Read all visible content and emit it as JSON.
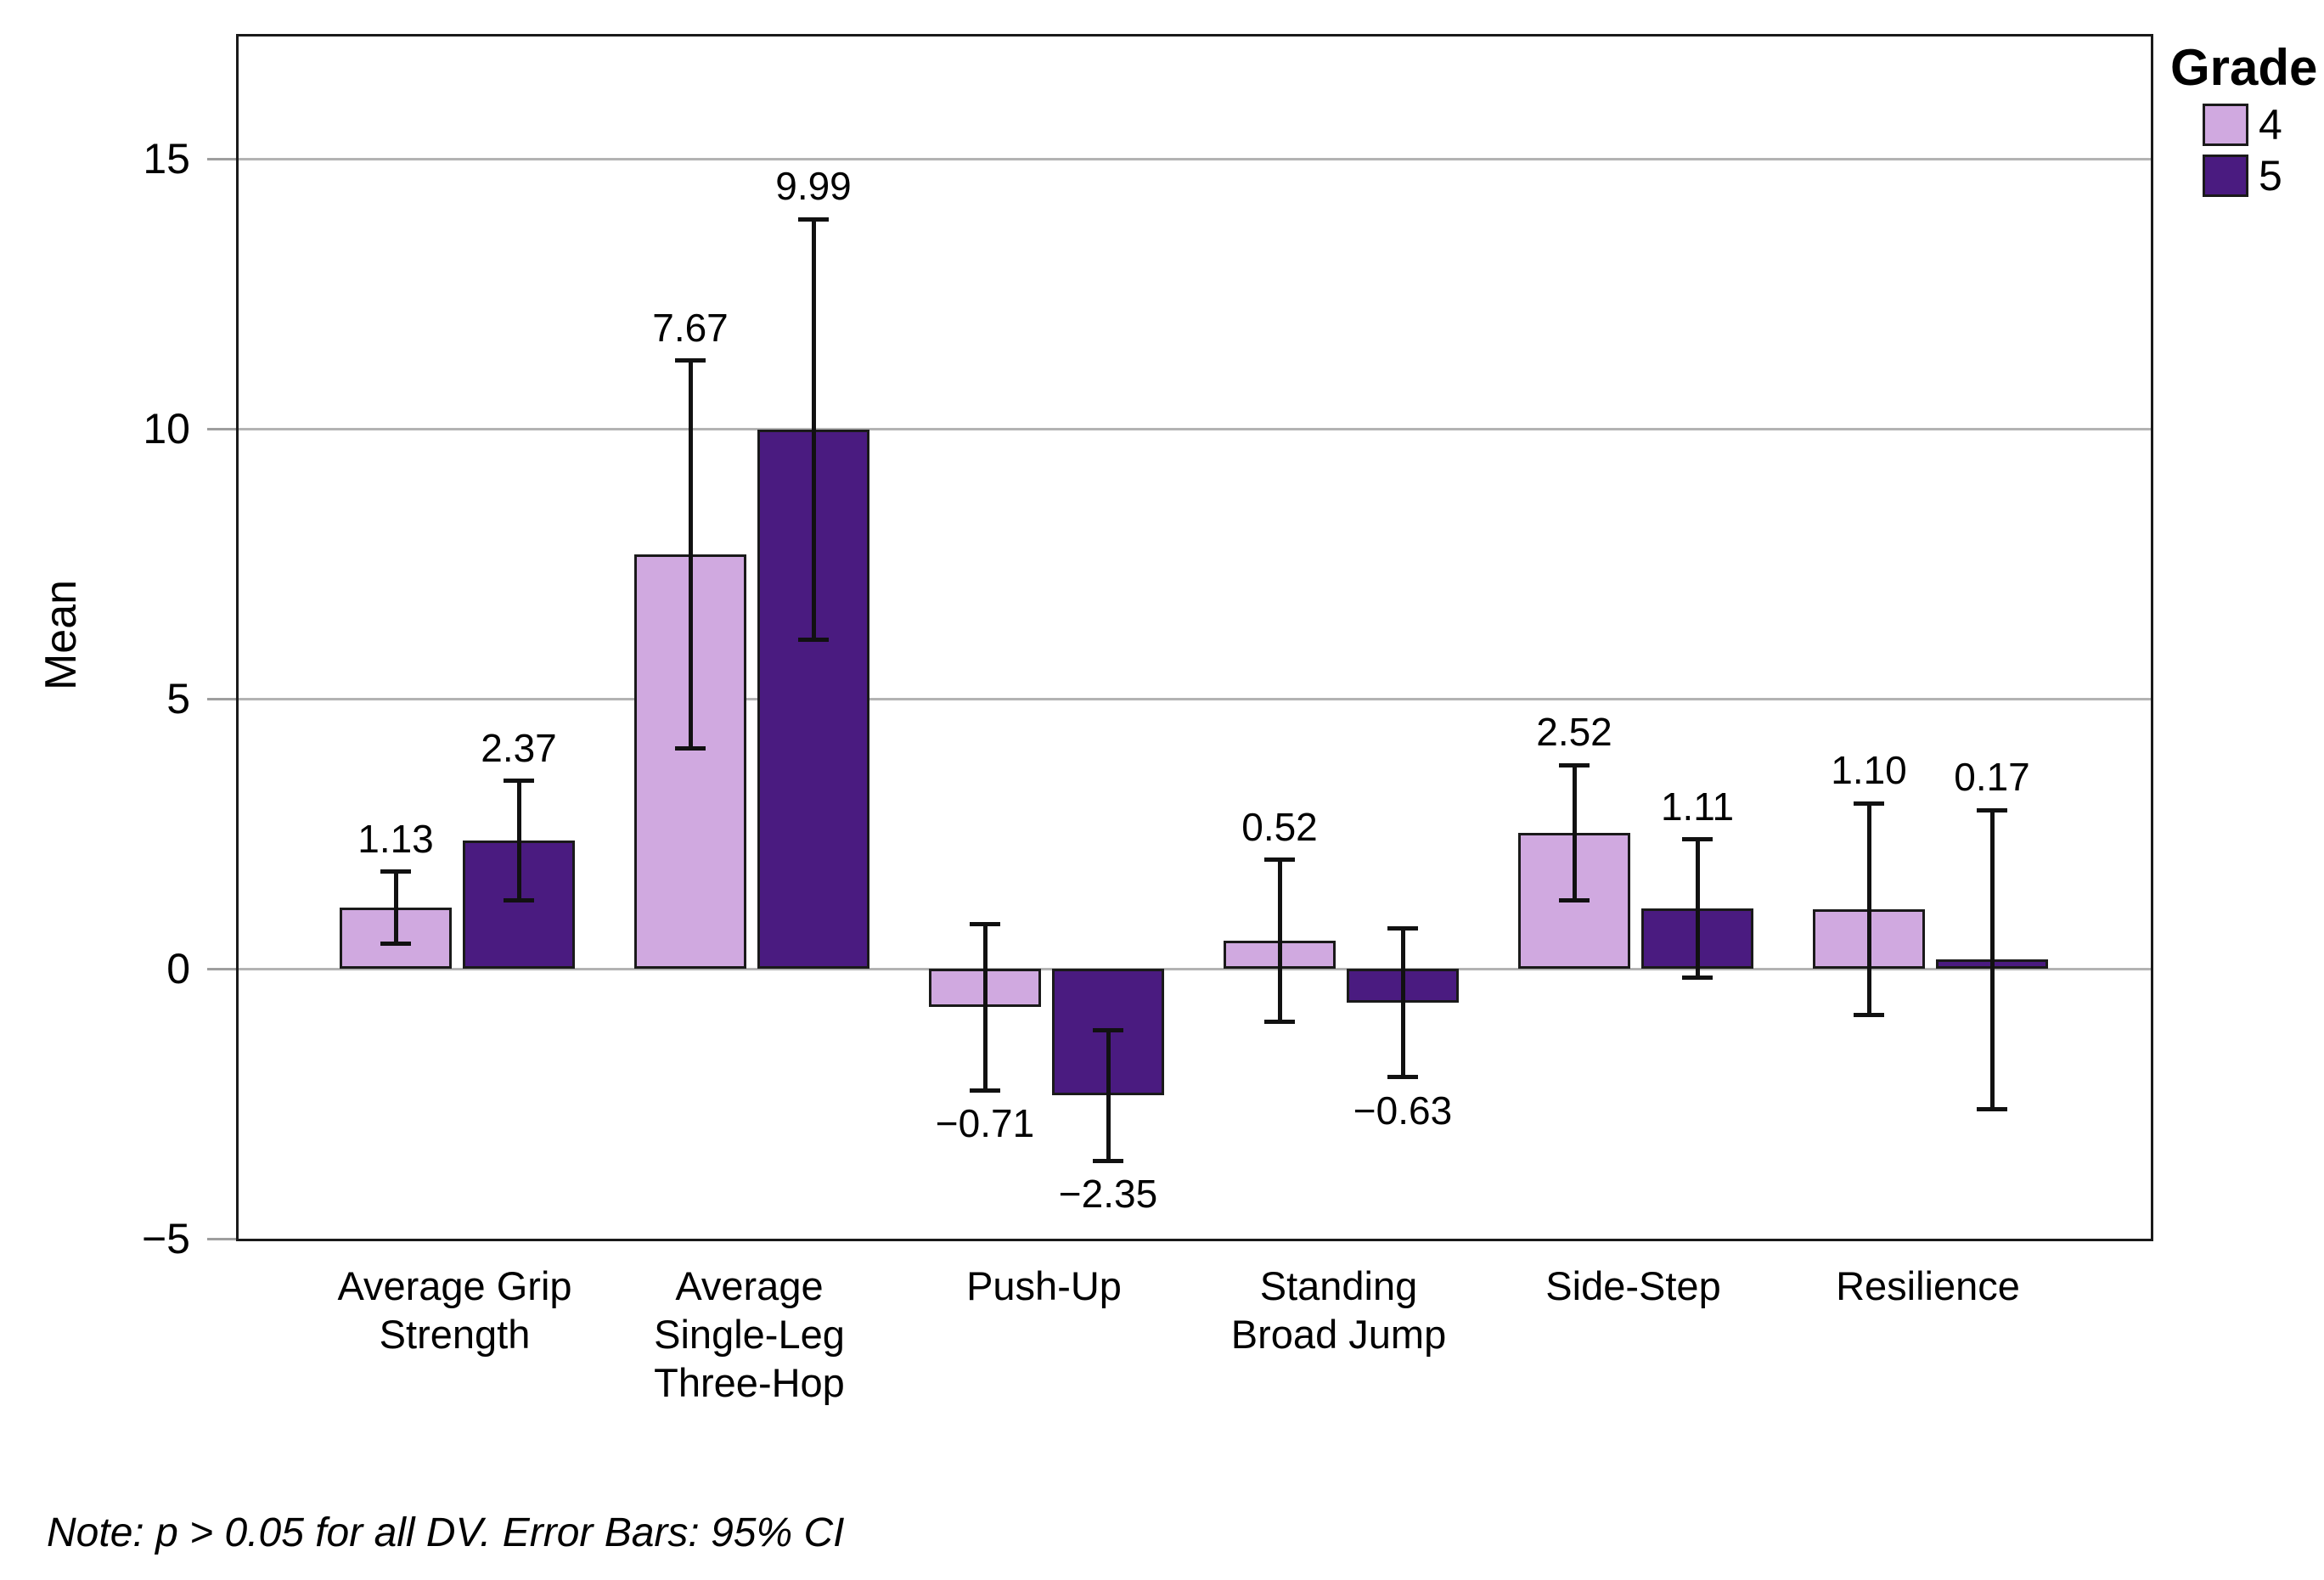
{
  "note": "Note: p > 0.05 for all DV. Error Bars: 95% CI",
  "chart_data": {
    "type": "bar",
    "title": "",
    "xlabel": "",
    "ylabel": "Mean",
    "categories": [
      "Average Grip\nStrength",
      "Average\nSingle-Leg\nThree-Hop",
      "Push-Up",
      "Standing\nBroad Jump",
      "Side-Step",
      "Resilience"
    ],
    "series": [
      {
        "name": "4",
        "color": "#d0a9e0",
        "values": [
          1.13,
          7.67,
          -0.71,
          0.52,
          2.52,
          1.1
        ],
        "labels": [
          "1.13",
          "7.67",
          "−0.71",
          "0.52",
          "2.52",
          "1.10"
        ],
        "ci_low": [
          0.46,
          4.08,
          -2.25,
          -0.98,
          1.27,
          -0.86
        ],
        "ci_high": [
          1.8,
          11.26,
          0.83,
          2.02,
          3.77,
          3.06
        ]
      },
      {
        "name": "5",
        "color": "#4a1b80",
        "values": [
          2.37,
          9.99,
          -2.35,
          -0.63,
          1.11,
          0.17
        ],
        "labels": [
          "2.37",
          "9.99",
          "−2.35",
          "−0.63",
          "1.11",
          "0.17"
        ],
        "ci_low": [
          1.26,
          6.1,
          -3.56,
          -2.01,
          -0.17,
          -2.6
        ],
        "ci_high": [
          3.48,
          13.88,
          -1.14,
          0.75,
          2.39,
          2.94
        ]
      }
    ],
    "y_ticks": [
      -5,
      0,
      5,
      10,
      15
    ],
    "y_tick_labels": [
      "−5",
      "0",
      "5",
      "10",
      "15"
    ],
    "ylim": [
      -5,
      17.26
    ],
    "gridlines": [
      0,
      5,
      10,
      15
    ],
    "grid": true,
    "legend_title": "Grade",
    "legend_position": "top-right",
    "error_bars": "95% CI",
    "colors": {
      "grade4": "#d0a9e0",
      "grade5": "#4a1b80",
      "bar_border": "#1a1a1a",
      "gridline": "#b3b3b3",
      "frame": "#1a1a1a",
      "text": "#000000"
    }
  }
}
